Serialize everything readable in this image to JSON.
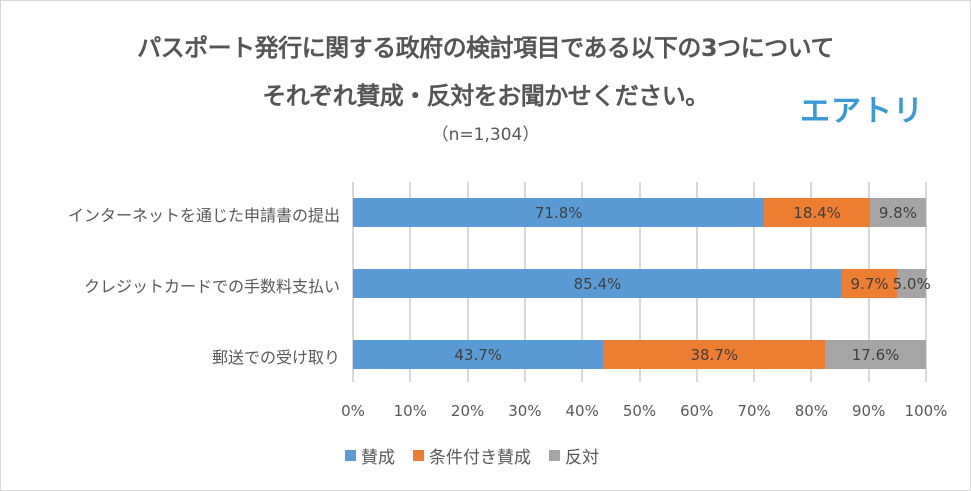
{
  "title_line1": "パスポート発行に関する政府の検討項目である以下の3つについて",
  "title_line2": "それぞれ賛成・反対をお聞かせください。",
  "subtitle": "（n=1,304）",
  "logo": "エアトリ",
  "colors": {
    "approve": "#5b9bd5",
    "conditional": "#ed7d31",
    "oppose": "#a5a5a5"
  },
  "axis_ticks": [
    "0%",
    "10%",
    "20%",
    "30%",
    "40%",
    "50%",
    "60%",
    "70%",
    "80%",
    "90%",
    "100%"
  ],
  "legend": [
    "賛成",
    "条件付き賛成",
    "反対"
  ],
  "rows": [
    {
      "label": "インターネットを通じた申請書の提出",
      "values": [
        "71.8%",
        "18.4%",
        "9.8%"
      ]
    },
    {
      "label": "クレジットカードでの手数料支払い",
      "values": [
        "85.4%",
        "9.7%",
        "5.0%"
      ]
    },
    {
      "label": "郵送での受け取り",
      "values": [
        "43.7%",
        "38.7%",
        "17.6%"
      ]
    }
  ],
  "chart_data": {
    "type": "bar",
    "orientation": "horizontal",
    "stacked": true,
    "title": "パスポート発行に関する政府の検討項目である以下の3つについて それぞれ賛成・反対をお聞かせください。",
    "subtitle": "（n=1,304）",
    "categories": [
      "インターネットを通じた申請書の提出",
      "クレジットカードでの手数料支払い",
      "郵送での受け取り"
    ],
    "series": [
      {
        "name": "賛成",
        "color": "#5b9bd5",
        "values": [
          71.8,
          85.4,
          43.7
        ]
      },
      {
        "name": "条件付き賛成",
        "color": "#ed7d31",
        "values": [
          18.4,
          9.7,
          38.7
        ]
      },
      {
        "name": "反対",
        "color": "#a5a5a5",
        "values": [
          9.8,
          5.0,
          17.6
        ]
      }
    ],
    "xlabel": "",
    "ylabel": "",
    "xlim": [
      0,
      100
    ],
    "x_tick_labels": [
      "0%",
      "10%",
      "20%",
      "30%",
      "40%",
      "50%",
      "60%",
      "70%",
      "80%",
      "90%",
      "100%"
    ],
    "grid": "vertical",
    "legend_position": "bottom",
    "data_labels": true
  }
}
